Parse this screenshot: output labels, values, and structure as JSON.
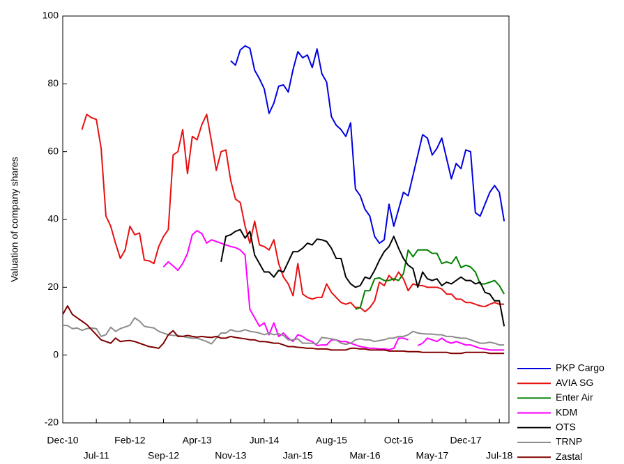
{
  "chart_data": {
    "type": "line",
    "ylabel": "Valuation of company shares",
    "x": [
      0,
      1,
      2,
      3,
      4,
      5,
      6,
      7,
      8,
      9,
      10,
      11,
      12,
      13,
      14,
      15,
      16,
      17,
      18,
      19,
      20,
      21,
      22,
      23,
      24,
      25,
      26,
      27,
      28,
      29,
      30,
      31,
      32,
      33,
      34,
      35,
      36,
      37,
      38,
      39,
      40,
      41,
      42,
      43,
      44,
      45,
      46,
      47,
      48,
      49,
      50,
      51,
      52,
      53,
      54,
      55,
      56,
      57,
      58,
      59,
      60,
      61,
      62,
      63,
      64,
      65,
      66,
      67,
      68,
      69,
      70,
      71,
      72,
      73,
      74,
      75,
      76,
      77,
      78,
      79,
      80,
      81,
      82,
      83,
      84,
      85,
      86,
      87,
      88,
      89,
      90,
      91,
      92
    ],
    "xlim": [
      0,
      93
    ],
    "xticks": [
      {
        "value": 0,
        "label": "Dec-10"
      },
      {
        "value": 7,
        "label": "Jul-11"
      },
      {
        "value": 14,
        "label": "Feb-12"
      },
      {
        "value": 21,
        "label": "Sep-12"
      },
      {
        "value": 28,
        "label": "Apr-13"
      },
      {
        "value": 35,
        "label": "Nov-13"
      },
      {
        "value": 42,
        "label": "Jun-14"
      },
      {
        "value": 49,
        "label": "Jan-15"
      },
      {
        "value": 56,
        "label": "Aug-15"
      },
      {
        "value": 63,
        "label": "Mar-16"
      },
      {
        "value": 70,
        "label": "Oct-16"
      },
      {
        "value": 77,
        "label": "May-17"
      },
      {
        "value": 84,
        "label": "Dec-17"
      },
      {
        "value": 91,
        "label": "Jul-18"
      }
    ],
    "ylim": [
      -20,
      100
    ],
    "yticks": [
      -20,
      0,
      20,
      40,
      60,
      80,
      100
    ],
    "grid": false,
    "legend": "right",
    "series": [
      {
        "name": "PKP Cargo",
        "color": "#0000e0",
        "values": [
          null,
          null,
          null,
          null,
          null,
          null,
          null,
          null,
          null,
          null,
          null,
          null,
          null,
          null,
          null,
          null,
          null,
          null,
          null,
          null,
          null,
          null,
          null,
          null,
          null,
          null,
          null,
          null,
          null,
          null,
          null,
          null,
          null,
          null,
          null,
          86.8,
          85.5,
          90,
          91.2,
          90.5,
          84,
          81.5,
          78.5,
          71.3,
          74.3,
          79.3,
          79.7,
          77.6,
          84.2,
          89.5,
          87.7,
          88.5,
          84.8,
          90.3,
          83,
          80.5,
          70.3,
          67.8,
          66.5,
          64.5,
          68.5,
          49,
          47,
          43,
          41,
          35,
          33,
          34,
          44.5,
          38,
          43,
          48,
          47,
          53,
          59,
          65,
          64,
          59,
          61,
          64,
          58,
          52,
          56.5,
          55,
          60.5,
          60,
          42,
          41,
          44.5,
          48,
          50,
          48,
          39.5
        ]
      },
      {
        "name": "AVIA SG",
        "color": "#e81010",
        "values": [
          null,
          null,
          null,
          null,
          66.5,
          71,
          70,
          69.5,
          61,
          41,
          38,
          33,
          28.5,
          31,
          38,
          35.5,
          36,
          28,
          27.8,
          27,
          32,
          35,
          37,
          59,
          60,
          66.5,
          53.5,
          64.5,
          63.5,
          68,
          71,
          63,
          54.5,
          60,
          60.5,
          51.5,
          46,
          45,
          38,
          33,
          39.5,
          32.5,
          32,
          31,
          34,
          27,
          23,
          21,
          17.5,
          27,
          18,
          17,
          16.5,
          17,
          17,
          21,
          18.5,
          17,
          15.5,
          15,
          15.5,
          14,
          14,
          12.8,
          14,
          16,
          21.5,
          20.5,
          23.5,
          22,
          24.5,
          22.5,
          19,
          21,
          20.5,
          20.5,
          20,
          20,
          20,
          19.5,
          18,
          18,
          16.5,
          16.5,
          15.5,
          15.5,
          15,
          14.5,
          14.3,
          15,
          15.5,
          15,
          15
        ]
      },
      {
        "name": "Enter Air",
        "color": "#008000",
        "values": [
          null,
          null,
          null,
          null,
          null,
          null,
          null,
          null,
          null,
          null,
          null,
          null,
          null,
          null,
          null,
          null,
          null,
          null,
          null,
          null,
          null,
          null,
          null,
          null,
          null,
          null,
          null,
          null,
          null,
          null,
          null,
          null,
          null,
          null,
          null,
          null,
          null,
          null,
          null,
          null,
          null,
          null,
          null,
          null,
          null,
          null,
          null,
          null,
          null,
          null,
          null,
          null,
          null,
          null,
          null,
          null,
          null,
          null,
          null,
          null,
          null,
          13.5,
          14,
          19,
          19,
          22.5,
          22.8,
          22,
          22,
          22.5,
          22,
          24,
          31,
          29,
          31,
          31,
          31,
          30,
          30,
          27,
          27.5,
          27,
          29,
          25.8,
          26.5,
          26,
          24.5,
          21,
          21,
          21.5,
          22,
          20.5,
          18
        ]
      },
      {
        "name": "KDM",
        "color": "#ff00ff",
        "values": [
          null,
          null,
          null,
          null,
          null,
          null,
          null,
          null,
          null,
          null,
          null,
          null,
          null,
          null,
          null,
          null,
          null,
          null,
          null,
          null,
          null,
          26,
          27.5,
          26.3,
          25,
          27,
          30,
          35.5,
          36.7,
          35.8,
          33,
          34,
          33.5,
          33,
          32.5,
          32,
          31.7,
          31,
          29.5,
          13.5,
          11,
          8.5,
          9.5,
          6,
          9.5,
          5.5,
          6.5,
          5,
          4,
          6,
          5.5,
          4.5,
          4,
          2.8,
          3,
          3,
          4.5,
          4.5,
          4,
          4,
          3.5,
          3,
          2.5,
          2.3,
          2,
          2,
          1.8,
          1.8,
          1.6,
          2,
          5,
          5,
          4.5,
          null,
          2.8,
          3.5,
          5,
          4.5,
          4,
          5,
          4,
          3.5,
          4,
          3.5,
          3,
          3,
          2.5,
          2,
          1.8,
          1.5,
          1.5,
          1.5,
          1.5
        ]
      },
      {
        "name": "OTS",
        "color": "#000000",
        "values": [
          null,
          null,
          null,
          null,
          null,
          null,
          null,
          null,
          null,
          null,
          null,
          null,
          null,
          null,
          null,
          null,
          null,
          null,
          null,
          null,
          null,
          null,
          null,
          null,
          null,
          null,
          null,
          null,
          null,
          null,
          null,
          null,
          null,
          27.5,
          35,
          35.5,
          36.5,
          37,
          34.5,
          36.5,
          29.5,
          27,
          24.5,
          24.5,
          23,
          25,
          24.5,
          27.5,
          30.5,
          30.5,
          31.5,
          33,
          32.5,
          34.2,
          34,
          33.5,
          31.5,
          28.5,
          28.5,
          23,
          21,
          20,
          20.5,
          23,
          22.5,
          25,
          28,
          30.5,
          32,
          35,
          31.5,
          28.5,
          26.5,
          25.5,
          20,
          24.5,
          22.5,
          22,
          22.5,
          20.5,
          21.5,
          21,
          22,
          23,
          22,
          22,
          21,
          21.5,
          18.5,
          18,
          16,
          16,
          8.5
        ]
      },
      {
        "name": "TRNP",
        "color": "#8c8c8c",
        "values": [
          8.8,
          8.7,
          7.8,
          8,
          7.3,
          7.8,
          8,
          7.8,
          5.5,
          6,
          8.2,
          7,
          7.8,
          8.3,
          8.8,
          11,
          10,
          8.5,
          8.2,
          8,
          7,
          6.5,
          6,
          5.8,
          5.8,
          5.5,
          5.2,
          5,
          5,
          4.5,
          4,
          3.3,
          5,
          6.5,
          6.5,
          7.5,
          7,
          7,
          7.5,
          7,
          6.8,
          6.5,
          6,
          6.5,
          6,
          6.3,
          5.8,
          4.5,
          4.5,
          4.8,
          3.5,
          3.5,
          3.5,
          3.3,
          5.2,
          5,
          4.8,
          4.5,
          3.5,
          3.2,
          3.5,
          4.5,
          4.8,
          4.5,
          4.5,
          4,
          4.3,
          4.5,
          5,
          5,
          5.5,
          5.5,
          6,
          7,
          6.5,
          6.3,
          6.2,
          6.2,
          6,
          6,
          5.5,
          5.5,
          5.2,
          5,
          5,
          4.5,
          4,
          3.5,
          3.5,
          3.8,
          3.5,
          3,
          3
        ]
      },
      {
        "name": "Zastal",
        "color": "#800000",
        "values": [
          12,
          14.5,
          12,
          11,
          10,
          9,
          7.5,
          6,
          4.5,
          4,
          3.5,
          5,
          4,
          4.2,
          4.3,
          4,
          3.5,
          3,
          2.5,
          2.3,
          2,
          3.5,
          6,
          7.2,
          5.5,
          5.5,
          5.8,
          5.5,
          5.3,
          5.5,
          5.3,
          5.2,
          5.5,
          5,
          5,
          5.5,
          5.2,
          5,
          4.8,
          4.5,
          4.5,
          4,
          4,
          3.8,
          3.5,
          3.5,
          3,
          2.5,
          2.5,
          2.3,
          2.2,
          2,
          2,
          1.8,
          1.8,
          1.8,
          1.5,
          1.5,
          1.5,
          1.5,
          2,
          2,
          1.8,
          1.8,
          1.5,
          1.5,
          1.5,
          1.5,
          1.2,
          1.2,
          1.2,
          1.2,
          1,
          1,
          1,
          0.8,
          0.8,
          0.8,
          0.8,
          0.8,
          0.8,
          0.5,
          0.5,
          0.5,
          0.8,
          0.8,
          0.8,
          0.8,
          0.8,
          0.5,
          0.5,
          0.5,
          0.5
        ]
      }
    ]
  }
}
